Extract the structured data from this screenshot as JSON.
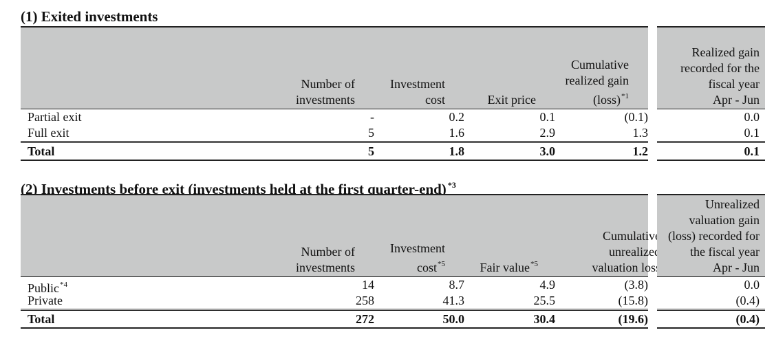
{
  "section1": {
    "title": "(1) Exited investments",
    "headers": {
      "number": "Number of\ninvestments",
      "cost": "Investment\ncost",
      "exit_price": "Exit price",
      "cumulative": "Cumulative\nrealized gain\n(loss)",
      "cumulative_note": "*1",
      "fiscal": "Realized gain\nrecorded for the\nfiscal year\nApr - Jun"
    },
    "rows": [
      {
        "label": "Partial exit",
        "number": "-",
        "cost": "0.2",
        "exit_price": "0.1",
        "cumulative": "(0.1)",
        "fiscal": "0.0"
      },
      {
        "label": "Full exit",
        "number": "5",
        "cost": "1.6",
        "exit_price": "2.9",
        "cumulative": "1.3",
        "fiscal": "0.1"
      }
    ],
    "total": {
      "label": "Total",
      "number": "5",
      "cost": "1.8",
      "exit_price": "3.0",
      "cumulative": "1.2",
      "fiscal": "0.1"
    }
  },
  "section2": {
    "title": "(2) Investments before exit (investments held at the first quarter-end)",
    "title_note": "*3",
    "headers": {
      "number": "Number of\ninvestments",
      "cost": "Investment\ncost",
      "cost_note": "*5",
      "fair_value": "Fair value",
      "fair_value_note": "*5",
      "cumulative": "Cumulative\nunrealized\nvaluation loss",
      "fiscal": "Unrealized\nvaluation gain\n(loss) recorded for\nthe fiscal year\nApr - Jun"
    },
    "rows": [
      {
        "label": "Public",
        "label_note": "*4",
        "number": "14",
        "cost": "8.7",
        "fair_value": "4.9",
        "cumulative": "(3.8)",
        "fiscal": "0.0"
      },
      {
        "label": "Private",
        "label_note": "",
        "number": "258",
        "cost": "41.3",
        "fair_value": "25.5",
        "cumulative": "(15.8)",
        "fiscal": "(0.4)"
      }
    ],
    "total": {
      "label": "Total",
      "number": "272",
      "cost": "50.0",
      "fair_value": "30.4",
      "cumulative": "(19.6)",
      "fiscal": "(0.4)"
    }
  }
}
